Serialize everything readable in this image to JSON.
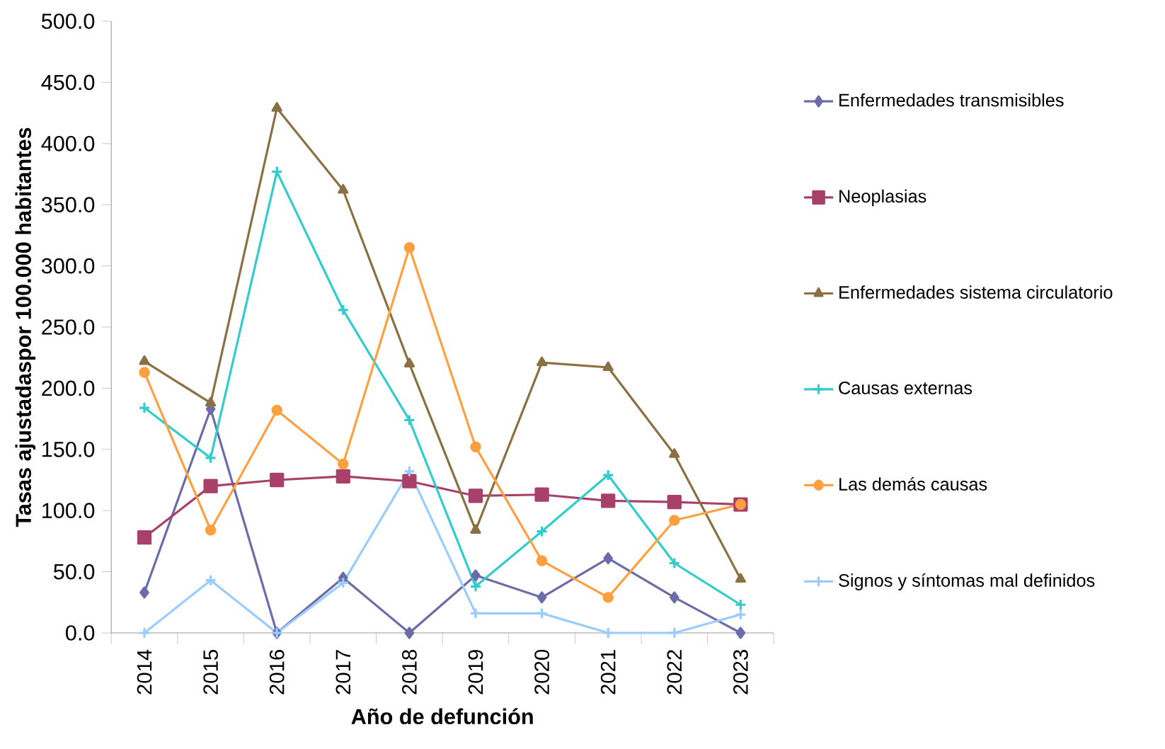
{
  "chart_data": {
    "type": "line",
    "xlabel": "Año de defunción",
    "ylabel": "Tasas ajustadaspor 100.000 habitantes",
    "categories": [
      "2014",
      "2015",
      "2016",
      "2017",
      "2018",
      "2019",
      "2020",
      "2021",
      "2022",
      "2023"
    ],
    "ylim": [
      0,
      500
    ],
    "yticks": [
      {
        "value": 0,
        "label": "0.0"
      },
      {
        "value": 50,
        "label": "50.0"
      },
      {
        "value": 100,
        "label": "100.0"
      },
      {
        "value": 150,
        "label": "150.0"
      },
      {
        "value": 200,
        "label": "200.0"
      },
      {
        "value": 250,
        "label": "250.0"
      },
      {
        "value": 300,
        "label": "300.0"
      },
      {
        "value": 350,
        "label": "350.0"
      },
      {
        "value": 400,
        "label": "400.0"
      },
      {
        "value": 450,
        "label": "450.0"
      },
      {
        "value": 500,
        "label": "500.0"
      }
    ],
    "grid": false,
    "legend": "right",
    "line_style": "solid",
    "series": [
      {
        "name": "Enfermedades transmisibles",
        "color": "#6b6ca8",
        "marker": "diamond",
        "values": [
          33,
          183,
          0,
          45,
          0,
          47,
          29,
          61,
          29,
          0
        ]
      },
      {
        "name": "Neoplasias",
        "color": "#a8406a",
        "marker": "square",
        "values": [
          78,
          120,
          125,
          128,
          124,
          112,
          113,
          108,
          107,
          105
        ]
      },
      {
        "name": "Enfermedades sistema circulatorio",
        "color": "#8b7044",
        "marker": "triangle",
        "values": [
          222,
          188,
          429,
          362,
          220,
          84,
          221,
          217,
          146,
          44
        ]
      },
      {
        "name": "Causas externas",
        "color": "#33cccc",
        "marker": "cross",
        "values": [
          184,
          143,
          377,
          264,
          174,
          38,
          83,
          129,
          57,
          23
        ]
      },
      {
        "name": "Las demás causas",
        "color": "#ffa040",
        "marker": "circle",
        "values": [
          213,
          84,
          182,
          138,
          315,
          152,
          59,
          29,
          92,
          105
        ]
      },
      {
        "name": "Signos y síntomas mal definidos",
        "color": "#99ccff",
        "marker": "cross",
        "values": [
          0,
          43,
          0,
          41,
          132,
          16,
          16,
          0,
          0,
          15
        ]
      }
    ]
  }
}
